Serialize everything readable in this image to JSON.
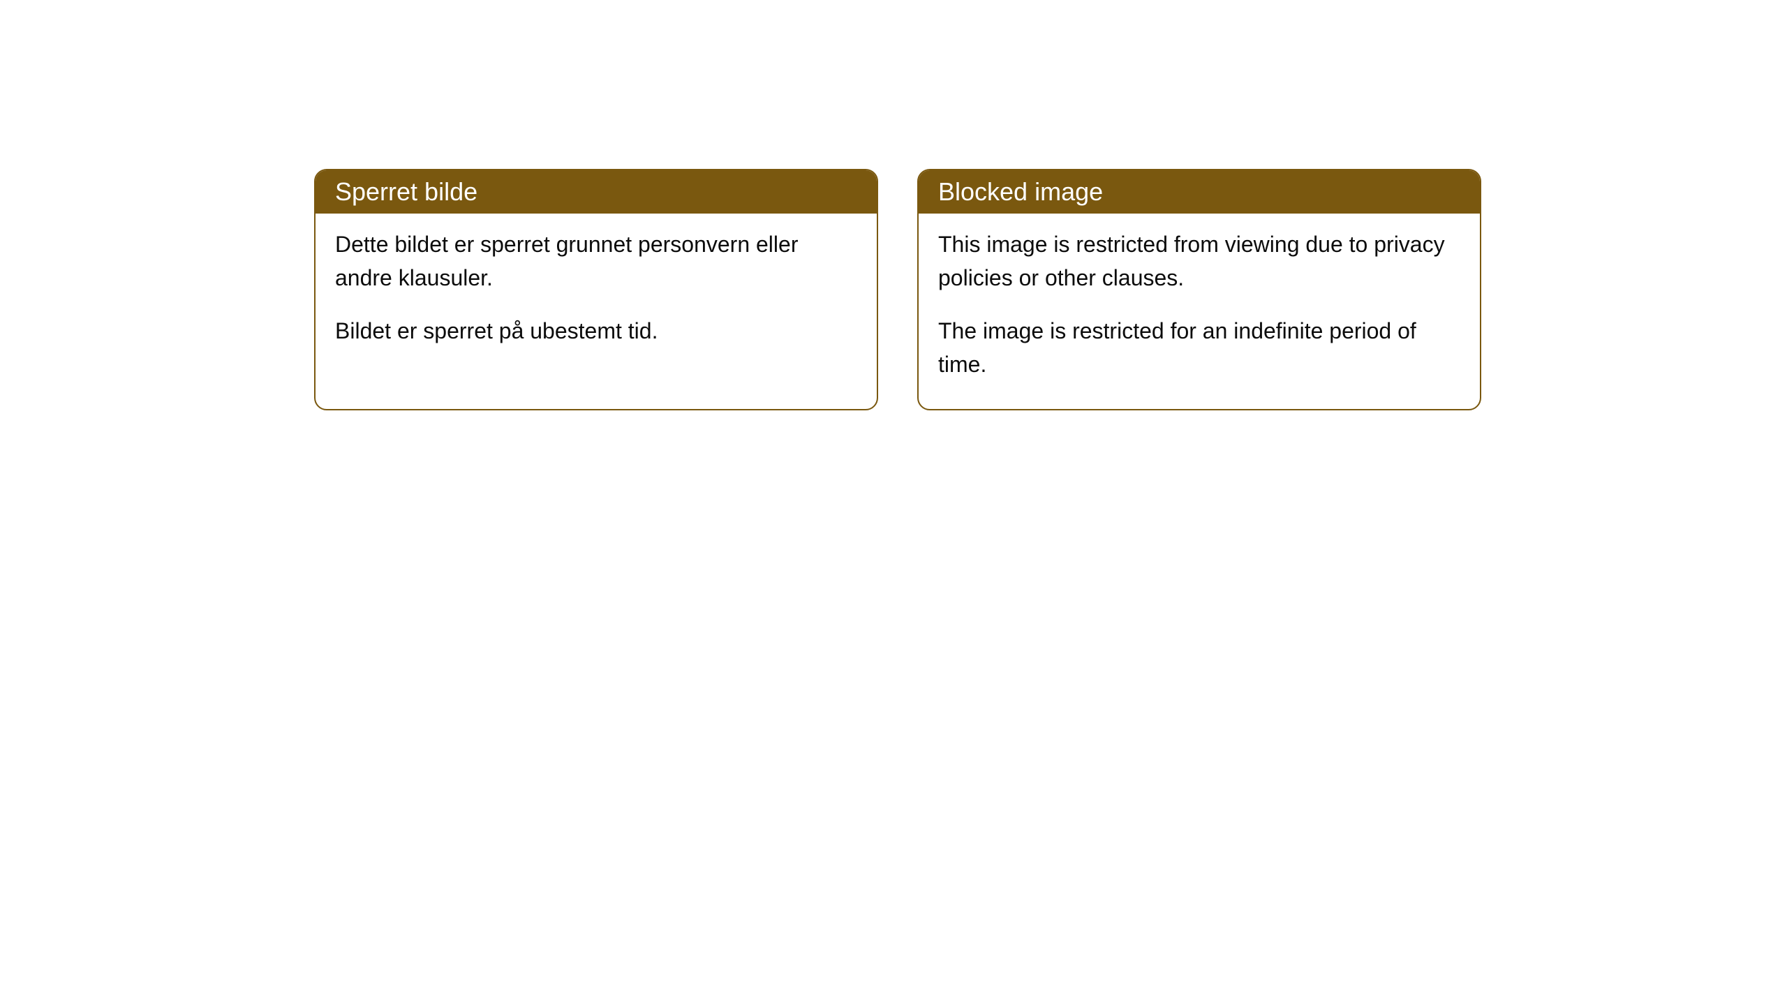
{
  "cards": [
    {
      "title": "Sperret bilde",
      "paragraph1": "Dette bildet er sperret grunnet personvern eller andre klausuler.",
      "paragraph2": "Bildet er sperret på ubestemt tid."
    },
    {
      "title": "Blocked image",
      "paragraph1": "This image is restricted from viewing due to privacy policies or other clauses.",
      "paragraph2": "The image is restricted for an indefinite period of time."
    }
  ],
  "style": {
    "header_bg_color": "#7a580f",
    "header_text_color": "#ffffff",
    "border_color": "#7a580f",
    "body_text_color": "#0c0c0c",
    "background_color": "#ffffff",
    "border_radius": 18,
    "header_fontsize": 36,
    "body_fontsize": 32
  }
}
